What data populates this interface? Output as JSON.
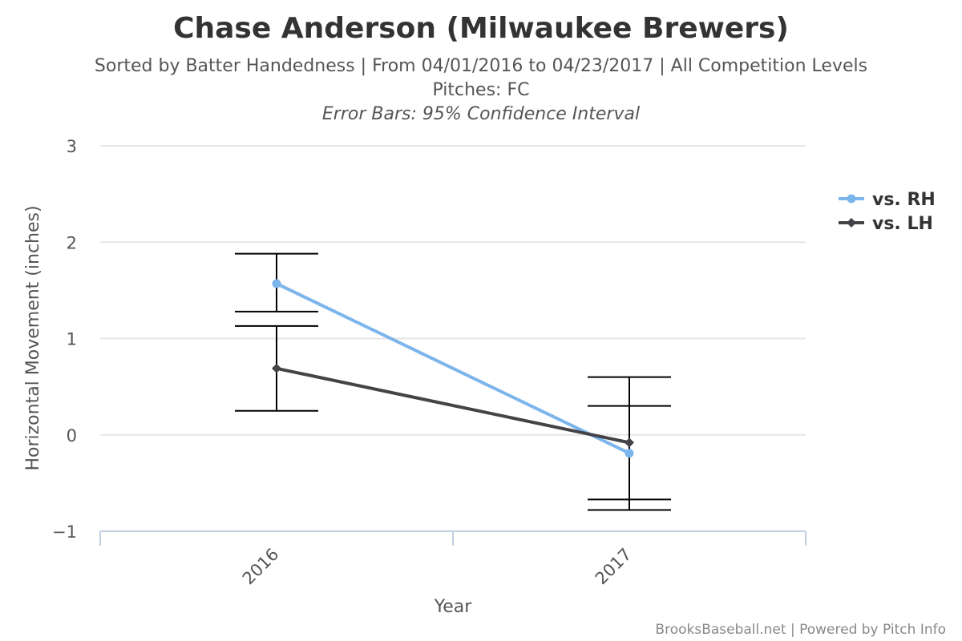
{
  "chart_data": {
    "type": "line",
    "title": "Chase Anderson (Milwaukee Brewers)",
    "subtitle_line1": "Sorted by Batter Handedness | From 04/01/2016 to 04/23/2017 | All Competition Levels",
    "subtitle_line2": "Pitches: FC",
    "subtitle_line3": "Error Bars: 95% Confidence Interval",
    "xlabel": "Year",
    "ylabel": "Horizontal Movement (inches)",
    "categories": [
      "2016",
      "2017"
    ],
    "ylim": [
      -1,
      3
    ],
    "yticks": [
      "3",
      "2",
      "1",
      "0",
      "−1"
    ],
    "grid": true,
    "legend_position": "right",
    "series": [
      {
        "name": "vs. RH",
        "color": "#7cb5ec",
        "marker": "circle",
        "values": [
          1.57,
          -0.19
        ],
        "error_low": [
          1.28,
          -0.67
        ],
        "error_high": [
          1.88,
          0.3
        ]
      },
      {
        "name": "vs. LH",
        "color": "#434348",
        "marker": "diamond",
        "values": [
          0.69,
          -0.08
        ],
        "error_low": [
          0.25,
          -0.78
        ],
        "error_high": [
          1.13,
          0.6
        ]
      }
    ]
  },
  "credits": "BrooksBaseball.net | Powered by Pitch Info"
}
